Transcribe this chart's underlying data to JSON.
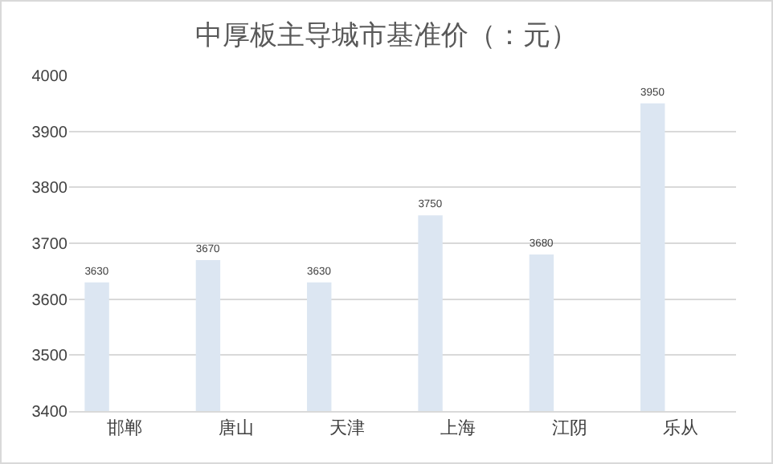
{
  "chart_data": {
    "type": "bar",
    "title": "中厚板主导城市基准价（：元）",
    "categories": [
      "邯郸",
      "唐山",
      "天津",
      "上海",
      "江阴",
      "乐从"
    ],
    "values": [
      3630,
      3670,
      3630,
      3750,
      3680,
      3950
    ],
    "color": "#dce6f2",
    "ylim": [
      3400,
      4000
    ],
    "yticks": [
      3400,
      3500,
      3600,
      3700,
      3800,
      3900,
      4000
    ],
    "grid": "y",
    "data_labels": true
  }
}
